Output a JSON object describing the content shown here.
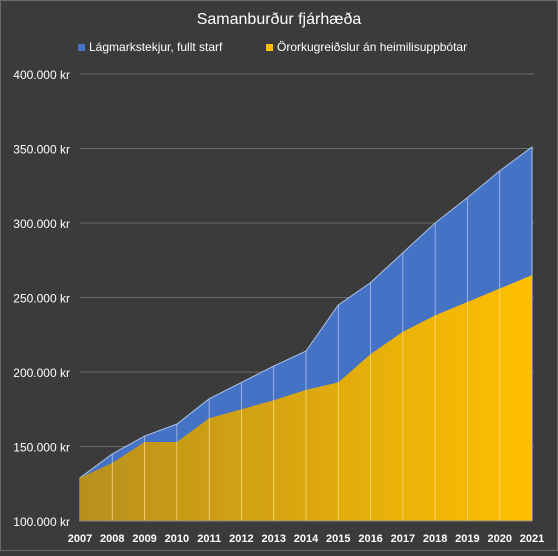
{
  "chart_data": {
    "type": "area",
    "title": "Samanburður  fjárhæða",
    "xlabel": "",
    "ylabel": "",
    "x": [
      "2007",
      "2008",
      "2009",
      "2010",
      "2011",
      "2012",
      "2013",
      "2014",
      "2015",
      "2016",
      "2017",
      "2018",
      "2019",
      "2020",
      "2021"
    ],
    "ylim": [
      100000,
      400000
    ],
    "yticks": [
      100000,
      150000,
      200000,
      250000,
      300000,
      350000,
      400000
    ],
    "ytick_labels": [
      "100.000 kr",
      "150.000 kr",
      "200.000 kr",
      "250.000 kr",
      "300.000 kr",
      "350.000 kr",
      "400.000 kr"
    ],
    "grid": true,
    "legend_position": "top",
    "overlapping": true,
    "series": [
      {
        "name": "Lágmarkstekjur, fullt starf",
        "color": "#4472c4",
        "values": [
          129000,
          145000,
          157000,
          165000,
          182000,
          193000,
          204000,
          214000,
          245000,
          260000,
          280000,
          300000,
          317000,
          335000,
          351000
        ]
      },
      {
        "name": "Örorkugreiðslur án heimilisuppbótar",
        "color": "#ffc000",
        "values": [
          129000,
          139000,
          153000,
          153000,
          169000,
          175000,
          181000,
          188000,
          193000,
          212000,
          227000,
          238000,
          247000,
          256000,
          265000
        ]
      }
    ]
  }
}
